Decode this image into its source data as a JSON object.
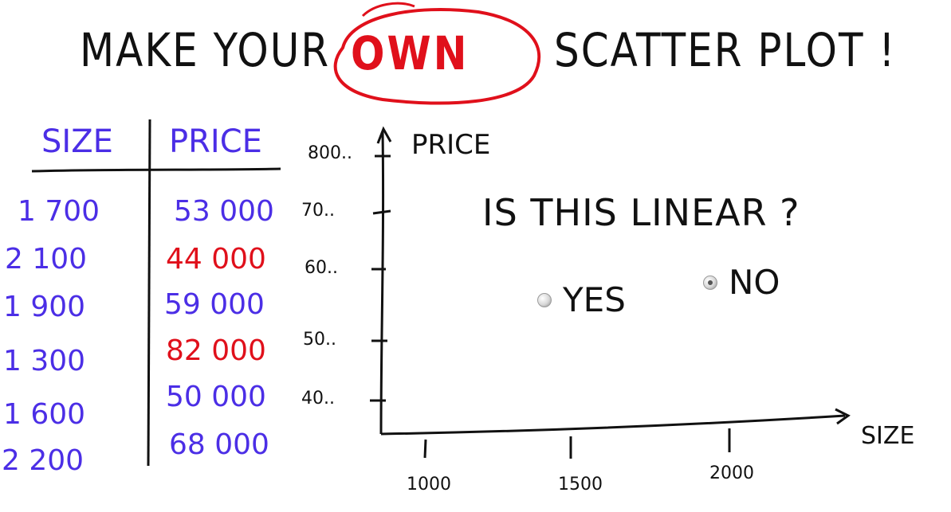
{
  "title": {
    "prefix": "MAKE YOUR",
    "emphasis": "OWN",
    "suffix": "SCATTER PLOT !"
  },
  "table": {
    "headers": [
      "SIZE",
      "PRICE"
    ],
    "rows": [
      {
        "size": "1 700",
        "price": "53 000",
        "price_color": "blue"
      },
      {
        "size": "2 100",
        "price": "44 000",
        "price_color": "red"
      },
      {
        "size": "1 900",
        "price": "59 000",
        "price_color": "blue"
      },
      {
        "size": "1 300",
        "price": "82 000",
        "price_color": "red"
      },
      {
        "size": "1 600",
        "price": "50 000",
        "price_color": "blue"
      },
      {
        "size": "2 200",
        "price": "68 000",
        "price_color": "blue"
      }
    ]
  },
  "plot": {
    "y_label": "PRICE",
    "x_label": "SIZE",
    "y_ticks": [
      "800..",
      "70..",
      "60..",
      "50..",
      "40.."
    ],
    "x_ticks": [
      "1000",
      "1500",
      "2000"
    ]
  },
  "quiz": {
    "question": "IS THIS LINEAR ?",
    "options": [
      {
        "label": "YES",
        "selected": false
      },
      {
        "label": "NO",
        "selected": true
      }
    ]
  },
  "colors": {
    "ink": "#111111",
    "blue": "#4b2ee6",
    "red": "#e0101b"
  }
}
